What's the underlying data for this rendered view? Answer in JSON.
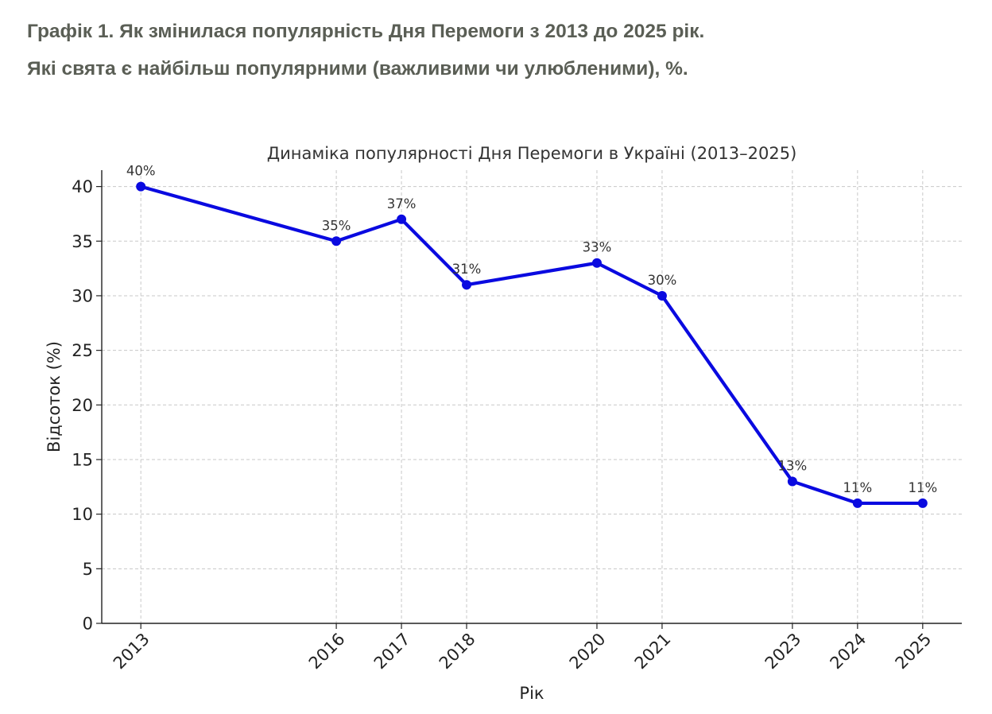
{
  "header": {
    "title": "Графік 1.  Як змінилася популярність Дня Перемоги з 2013 до 2025 рік.",
    "subtitle": "Які свята є найбільш популярними (важливими чи улюбленими), %."
  },
  "chart_data": {
    "type": "line",
    "title": "Динаміка популярності Дня Перемоги в Україні (2013–2025)",
    "xlabel": "Рік",
    "ylabel": "Відсоток (%)",
    "x": [
      2013,
      2016,
      2017,
      2018,
      2020,
      2021,
      2023,
      2024,
      2025
    ],
    "x_tick_labels": [
      "2013",
      "2016",
      "2017",
      "2018",
      "2020",
      "2021",
      "2023",
      "2024",
      "2025"
    ],
    "series": [
      {
        "values": [
          40,
          35,
          37,
          31,
          33,
          30,
          13,
          11,
          11
        ],
        "data_labels": [
          "40%",
          "35%",
          "37%",
          "31%",
          "33%",
          "30%",
          "13%",
          "11%",
          "11%"
        ],
        "color": "#0a0ae0",
        "marker": "circle"
      }
    ],
    "y_ticks": [
      0,
      5,
      10,
      15,
      20,
      25,
      30,
      35,
      40
    ],
    "ylim": [
      0,
      41.5
    ],
    "xlim": [
      2012.4,
      2025.6
    ],
    "grid": true,
    "legend": "none"
  }
}
